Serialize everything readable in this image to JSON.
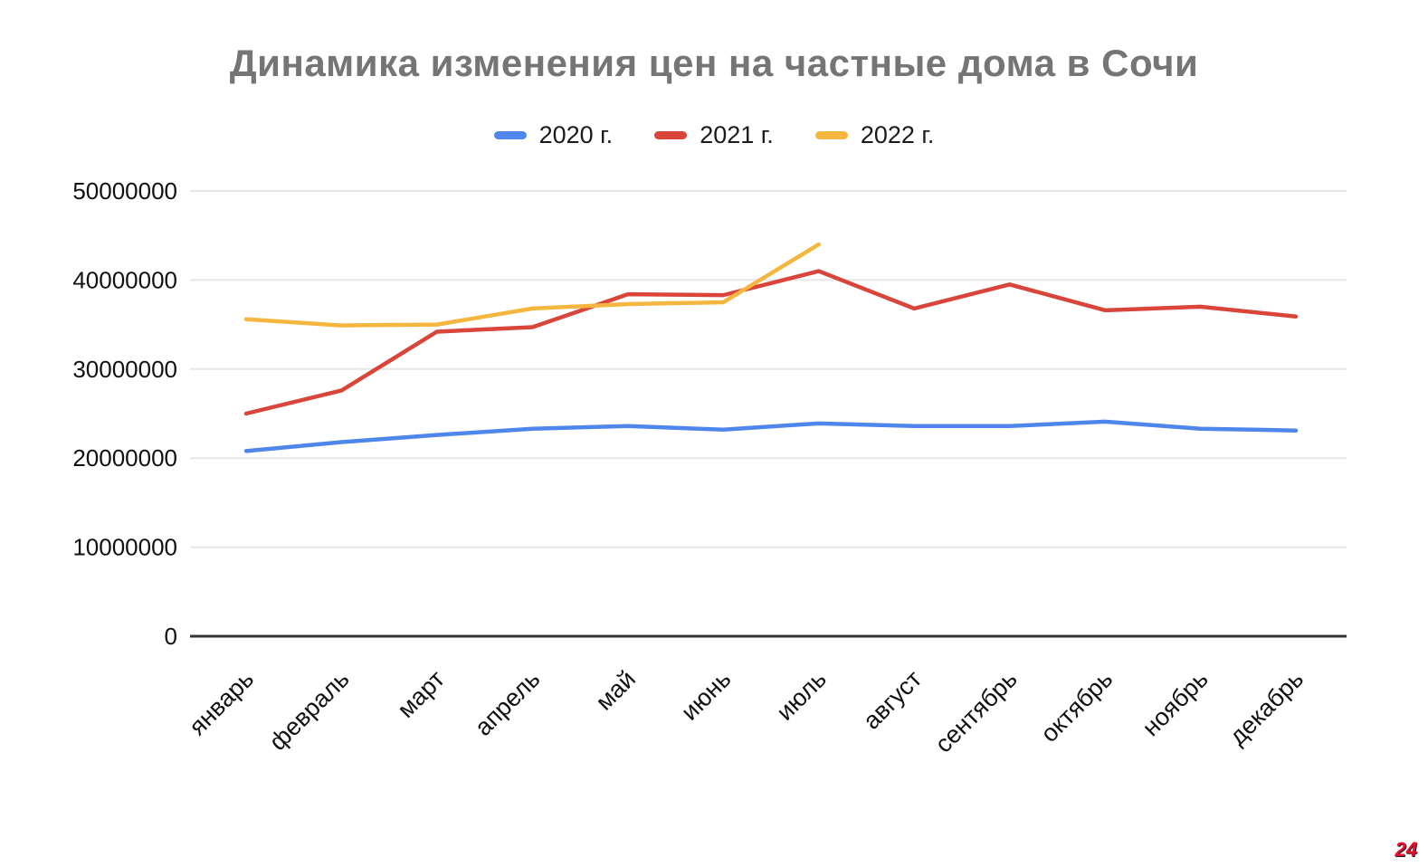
{
  "chart_data": {
    "type": "line",
    "title": "Динамика изменения цен на частные дома в Сочи",
    "categories": [
      "январь",
      "февраль",
      "март",
      "апрель",
      "май",
      "июнь",
      "июль",
      "август",
      "сентябрь",
      "октябрь",
      "ноябрь",
      "декабрь"
    ],
    "series": [
      {
        "name": "2020 г.",
        "color": "#4e86ec",
        "values": [
          20800000,
          21800000,
          22600000,
          23300000,
          23600000,
          23200000,
          23900000,
          23600000,
          23600000,
          24100000,
          23300000,
          23100000
        ]
      },
      {
        "name": "2021 г.",
        "color": "#d9453a",
        "values": [
          25000000,
          27600000,
          34200000,
          34700000,
          38400000,
          38300000,
          41000000,
          36800000,
          39500000,
          36600000,
          37000000,
          35900000
        ]
      },
      {
        "name": "2022 г.",
        "color": "#f4b63f",
        "values": [
          35600000,
          34900000,
          35000000,
          36800000,
          37300000,
          37500000,
          44000000,
          null,
          null,
          null,
          null,
          null
        ]
      }
    ],
    "xlabel": "",
    "ylabel": "",
    "ylim": [
      0,
      50000000
    ],
    "y_ticks": [
      0,
      10000000,
      20000000,
      30000000,
      40000000,
      50000000
    ],
    "grid": "horizontal",
    "legend_position": "top"
  },
  "watermark": "24",
  "colors": {
    "grid_line": "#e6e6e6",
    "axis_line": "#333333",
    "tick_label": "#111111",
    "title": "#757575"
  }
}
